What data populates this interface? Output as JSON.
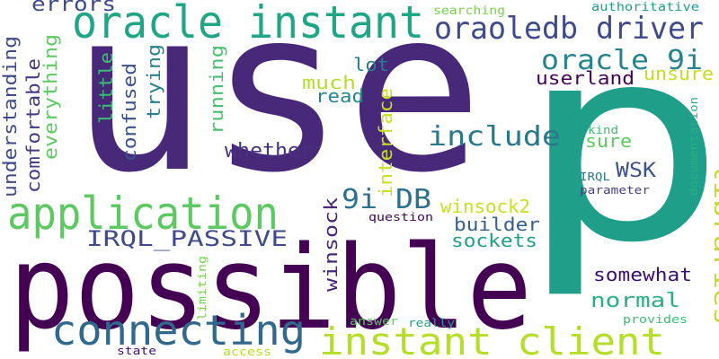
{
  "colors": {
    "background": "#ffffff",
    "dark_purple": "#482878",
    "indigo": "#440154",
    "blue": "#31688e",
    "slate": "#3e4a89",
    "teal_blue": "#26828e",
    "teal": "#1f9e89",
    "green_teal": "#35b779",
    "green": "#6ece58",
    "lime": "#b5de2b"
  },
  "words": [
    {
      "id": "use",
      "text": "use",
      "color": "#482878"
    },
    {
      "id": "p",
      "text": "p",
      "color": "#1f9e89"
    },
    {
      "id": "possible",
      "text": "possible",
      "color": "#440154"
    },
    {
      "id": "oracle-instant",
      "text": "oracle instant",
      "color": "#21a685"
    },
    {
      "id": "oraoledb-driver",
      "text": "oraoledb driver",
      "color": "#3e4a89"
    },
    {
      "id": "application",
      "text": "application",
      "color": "#5ec962"
    },
    {
      "id": "instant-client",
      "text": "instant client",
      "color": "#b5de2b"
    },
    {
      "id": "connecting",
      "text": "connecting",
      "color": "#31688e"
    },
    {
      "id": "oracle-9i",
      "text": "oracle 9i",
      "color": "#26828e"
    },
    {
      "id": "include",
      "text": "include",
      "color": "#2a788e"
    },
    {
      "id": "irql-passive",
      "text": "IRQL_PASSIVE",
      "color": "#3e4a89"
    },
    {
      "id": "9i-db",
      "text": "9i DB",
      "color": "#2c728e"
    },
    {
      "id": "libraries",
      "text": "libraries",
      "color": "#bddf26"
    },
    {
      "id": "errors",
      "text": "errors",
      "color": "#3e4a89"
    },
    {
      "id": "userland",
      "text": "userland",
      "color": "#440154"
    },
    {
      "id": "unsure",
      "text": "unsure",
      "color": "#c2df23"
    },
    {
      "id": "whether",
      "text": "whether",
      "color": "#46327e"
    },
    {
      "id": "normal",
      "text": "normal",
      "color": "#2ab07f"
    },
    {
      "id": "winsock",
      "text": "winsock",
      "color": "#482878"
    },
    {
      "id": "winsock2",
      "text": "winsock2",
      "color": "#c8e020"
    },
    {
      "id": "sockets",
      "text": "sockets",
      "color": "#1f9e89"
    },
    {
      "id": "builder",
      "text": "builder",
      "color": "#355f8d"
    },
    {
      "id": "wsk",
      "text": "WSK",
      "color": "#3b528b"
    },
    {
      "id": "sure",
      "text": "sure",
      "color": "#5ec962"
    },
    {
      "id": "somewhat",
      "text": "somewhat",
      "color": "#3b0f70"
    },
    {
      "id": "lot",
      "text": "lot",
      "color": "#287c8e"
    },
    {
      "id": "much",
      "text": "much",
      "color": "#b5de2b"
    },
    {
      "id": "read",
      "text": "read",
      "color": "#25858e"
    },
    {
      "id": "interface",
      "text": "interface",
      "color": "#c7e020"
    },
    {
      "id": "understanding",
      "text": "understanding",
      "color": "#3e4a89"
    },
    {
      "id": "comfortable",
      "text": "comfortable",
      "color": "#443983"
    },
    {
      "id": "everything",
      "text": "everything",
      "color": "#5ec962"
    },
    {
      "id": "little",
      "text": "little",
      "color": "#3dbc74"
    },
    {
      "id": "confused",
      "text": "confused",
      "color": "#3b528b"
    },
    {
      "id": "trying",
      "text": "trying",
      "color": "#26828e"
    },
    {
      "id": "running",
      "text": "running",
      "color": "#4ac16d"
    },
    {
      "id": "searching",
      "text": "searching",
      "color": "#7ad151"
    },
    {
      "id": "authoritative",
      "text": "authoritative",
      "color": "#1f9e89"
    },
    {
      "id": "kind",
      "text": "kind",
      "color": "#3dbc74"
    },
    {
      "id": "documentation",
      "text": "documentation",
      "color": "#2ab07f"
    },
    {
      "id": "irql",
      "text": "IRQL",
      "color": "#2a788e"
    },
    {
      "id": "parameter",
      "text": "parameter",
      "color": "#433e85"
    },
    {
      "id": "question",
      "text": "question",
      "color": "#440154"
    },
    {
      "id": "limiting",
      "text": "limiting",
      "color": "#7ad151"
    },
    {
      "id": "answer",
      "text": "answer",
      "color": "#5ec962"
    },
    {
      "id": "really",
      "text": "really",
      "color": "#1f9e89"
    },
    {
      "id": "provides",
      "text": "provides",
      "color": "#3dbc74"
    },
    {
      "id": "state",
      "text": "state",
      "color": "#3b0f70"
    },
    {
      "id": "access",
      "text": "access",
      "color": "#b5de2b"
    }
  ]
}
